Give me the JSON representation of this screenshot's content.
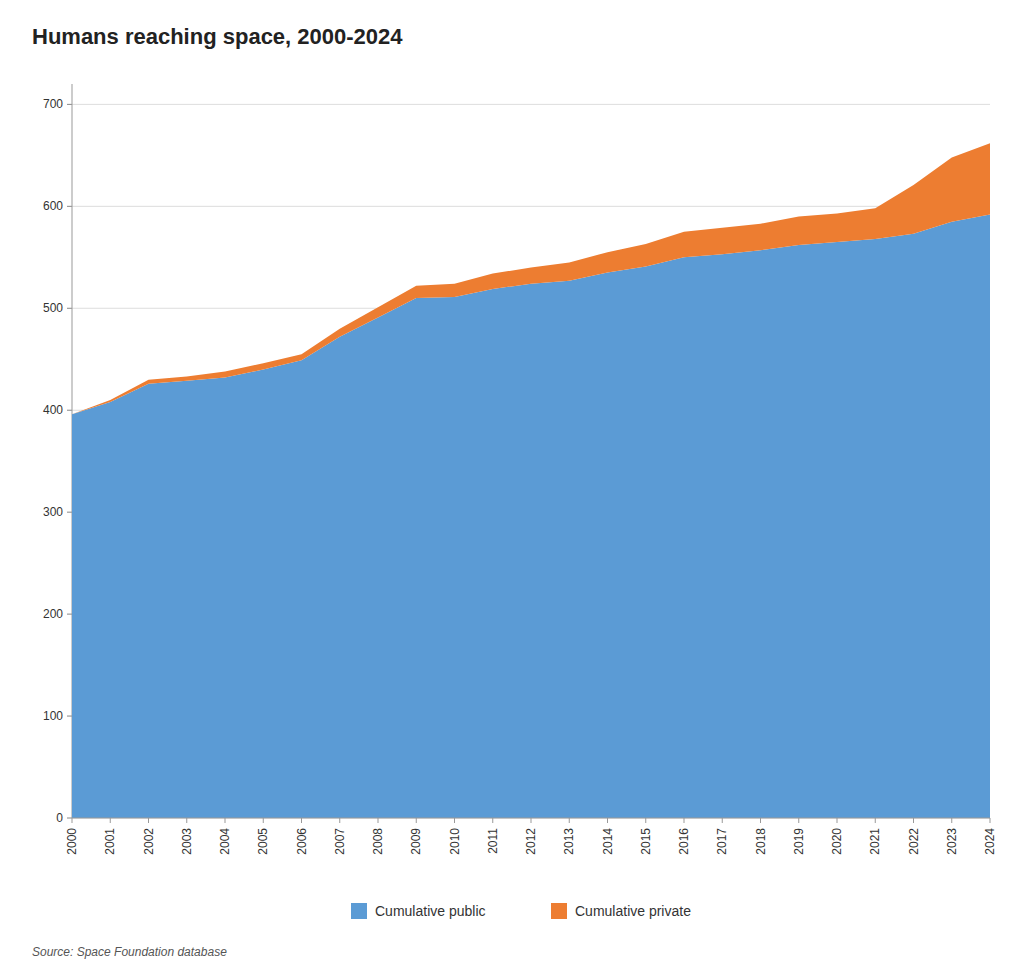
{
  "chart_data": {
    "type": "area",
    "title": "Humans reaching space, 2000-2024",
    "annotations": [
      "Source: Space Foundation database"
    ],
    "x": [
      2000,
      2001,
      2002,
      2003,
      2004,
      2005,
      2006,
      2007,
      2008,
      2009,
      2010,
      2011,
      2012,
      2013,
      2014,
      2015,
      2016,
      2017,
      2018,
      2019,
      2020,
      2021,
      2022,
      2023,
      2024
    ],
    "series": [
      {
        "name": "Cumulative public",
        "color": "#5b9bd5",
        "values": [
          396,
          408,
          426,
          429,
          432,
          440,
          449,
          472,
          491,
          510,
          511,
          519,
          524,
          527,
          535,
          541,
          550,
          553,
          557,
          562,
          565,
          568,
          573,
          585,
          592
        ]
      },
      {
        "name": "Cumulative private",
        "color": "#ed7d31",
        "values": [
          0,
          2,
          4,
          4,
          6,
          6,
          6,
          8,
          10,
          12,
          13,
          15,
          16,
          18,
          20,
          22,
          25,
          26,
          26,
          28,
          28,
          30,
          48,
          63,
          70
        ]
      }
    ],
    "stacked": true,
    "xlim": [
      2000,
      2024
    ],
    "xticks": [
      2000,
      2001,
      2002,
      2003,
      2004,
      2005,
      2006,
      2007,
      2008,
      2009,
      2010,
      2011,
      2012,
      2013,
      2014,
      2015,
      2016,
      2017,
      2018,
      2019,
      2020,
      2021,
      2022,
      2023,
      2024
    ],
    "ylim": [
      0,
      720
    ],
    "yticks": [
      0,
      100,
      200,
      300,
      400,
      500,
      600,
      700
    ],
    "grid": true,
    "legend": "bottom"
  }
}
